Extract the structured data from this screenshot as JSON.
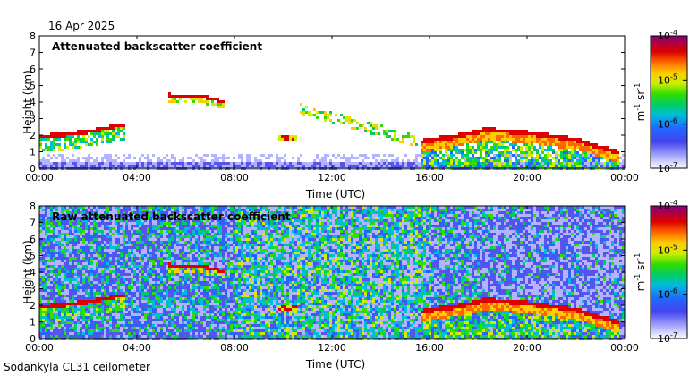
{
  "date_label": "16 Apr 2025",
  "instrument_label": "Sodankyla CL31 ceilometer",
  "colors": {
    "colormap": [
      "#ffffff",
      "#b3b3ff",
      "#5555ee",
      "#2266ff",
      "#00bbdd",
      "#00cc66",
      "#33dd00",
      "#ccee00",
      "#ffcc00",
      "#ff6600",
      "#dd0000",
      "#aa0044",
      "#880088"
    ]
  },
  "chart_data": [
    {
      "type": "heatmap",
      "title": "Attenuated backscatter coefficient",
      "xlabel": "Time (UTC)",
      "ylabel": "Height (km)",
      "xticks": [
        "00:00",
        "04:00",
        "08:00",
        "12:00",
        "16:00",
        "20:00",
        "00:00"
      ],
      "yticks": [
        "0",
        "1",
        "2",
        "3",
        "4",
        "5",
        "6",
        "7",
        "8"
      ],
      "xlim_hours": [
        0,
        24
      ],
      "ylim_km": [
        0,
        8
      ],
      "colorbar": {
        "unit_base": "m",
        "unit_exp": "-1",
        "unit_base2": "sr",
        "unit_exp2": "-1",
        "ticks": [
          {
            "base": "10",
            "exp": "-4"
          },
          {
            "base": "10",
            "exp": "-5"
          },
          {
            "base": "10",
            "exp": "-6"
          },
          {
            "base": "10",
            "exp": "-7"
          }
        ],
        "range_log10": [
          -7,
          -4
        ]
      },
      "features": {
        "cloud_base_km": [
          [
            0,
            2.0
          ],
          [
            1,
            2.1
          ],
          [
            2,
            2.3
          ],
          [
            3,
            2.6
          ],
          [
            3.5,
            2.7
          ]
        ],
        "upper_layer_km": [
          [
            5.2,
            4.5
          ],
          [
            6.5,
            4.45
          ],
          [
            7.5,
            4.1
          ]
        ],
        "midday_layer_km": [
          [
            9.7,
            1.9
          ],
          [
            10.5,
            1.9
          ]
        ],
        "evening_cloud_km": [
          [
            15.6,
            1.7
          ],
          [
            17,
            2.0
          ],
          [
            18.3,
            2.4
          ],
          [
            20,
            2.2
          ],
          [
            22,
            1.8
          ],
          [
            23.7,
            1.0
          ]
        ]
      },
      "noisy_background": false
    },
    {
      "type": "heatmap",
      "title": "Raw attenuated backscatter coefficient",
      "xlabel": "Time (UTC)",
      "ylabel": "Height (km)",
      "xticks": [
        "00:00",
        "04:00",
        "08:00",
        "12:00",
        "16:00",
        "20:00",
        "00:00"
      ],
      "yticks": [
        "0",
        "1",
        "2",
        "3",
        "4",
        "5",
        "6",
        "7",
        "8"
      ],
      "xlim_hours": [
        0,
        24
      ],
      "ylim_km": [
        0,
        8
      ],
      "colorbar": {
        "unit_base": "m",
        "unit_exp": "-1",
        "unit_base2": "sr",
        "unit_exp2": "-1",
        "ticks": [
          {
            "base": "10",
            "exp": "-4"
          },
          {
            "base": "10",
            "exp": "-5"
          },
          {
            "base": "10",
            "exp": "-6"
          },
          {
            "base": "10",
            "exp": "-7"
          }
        ],
        "range_log10": [
          -7,
          -4
        ]
      },
      "features": {
        "cloud_base_km": [
          [
            0,
            2.0
          ],
          [
            1,
            2.1
          ],
          [
            2,
            2.3
          ],
          [
            3,
            2.6
          ],
          [
            3.5,
            2.7
          ]
        ],
        "upper_layer_km": [
          [
            5.2,
            4.5
          ],
          [
            6.5,
            4.45
          ],
          [
            7.5,
            4.1
          ]
        ],
        "midday_layer_km": [
          [
            9.7,
            1.9
          ],
          [
            10.5,
            1.9
          ]
        ],
        "evening_cloud_km": [
          [
            15.6,
            1.7
          ],
          [
            17,
            2.0
          ],
          [
            18.3,
            2.4
          ],
          [
            20,
            2.2
          ],
          [
            22,
            1.8
          ],
          [
            23.7,
            1.0
          ]
        ]
      },
      "noisy_background": true
    }
  ]
}
